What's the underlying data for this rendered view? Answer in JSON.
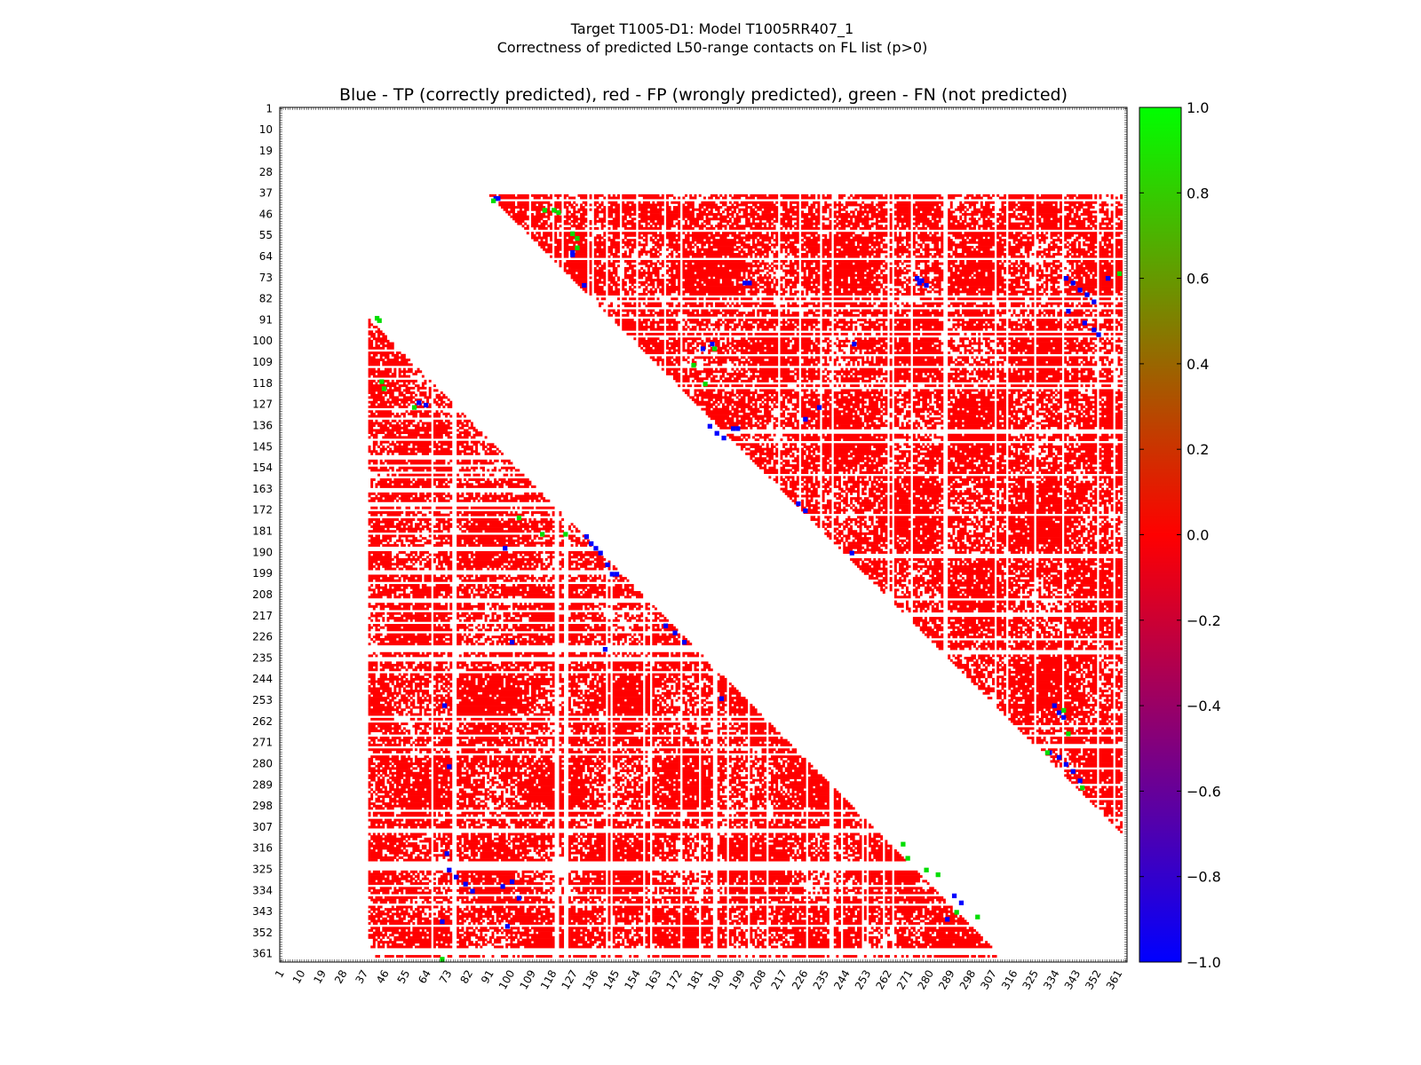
{
  "figure": {
    "title_line1": "Target T1005-D1: Model T1005RR407_1",
    "title_line2": "Correctness of predicted L50-range contacts on FL list (p>0)"
  },
  "chart_data": {
    "type": "heatmap",
    "title": "Blue - TP (correctly predicted), red - FP (wrongly predicted), green - FN (not predicted)",
    "xlabel": "",
    "ylabel": "",
    "n_residues": 364,
    "xlim": [
      1,
      364
    ],
    "ylim": [
      1,
      364
    ],
    "y_axis_inverted": true,
    "tick_labels": [
      1,
      10,
      19,
      28,
      37,
      46,
      55,
      64,
      73,
      82,
      91,
      100,
      109,
      118,
      127,
      136,
      145,
      154,
      163,
      172,
      181,
      190,
      199,
      208,
      217,
      226,
      235,
      244,
      253,
      262,
      271,
      280,
      289,
      298,
      307,
      316,
      325,
      334,
      343,
      352,
      361
    ],
    "colors": {
      "TP": "#0000ff",
      "FP": "#ff0000",
      "FN": "#00dd00"
    },
    "colorbar": {
      "range": [
        -1.0,
        1.0
      ],
      "tick_labels": [
        "1.0",
        "0.8",
        "0.6",
        "0.4",
        "0.2",
        "0.0",
        "−0.2",
        "−0.4",
        "−0.6",
        "−0.8",
        "−1.0"
      ],
      "gradient": [
        "#00ff00",
        "#ff0000",
        "#0000ff"
      ]
    },
    "regions": [
      {
        "name": "upper-triangle-region",
        "x_start": 91,
        "x_end": 362,
        "y_start": 38,
        "y_end": 309,
        "diagonal_offset": 53
      },
      {
        "name": "lower-triangle-region",
        "x_start": 39,
        "x_end": 310,
        "y_start": 91,
        "y_end": 362,
        "diagonal_offset": 52
      }
    ],
    "series": [
      {
        "name": "TP",
        "label": "correctly predicted",
        "color": "#0000ff",
        "points": [
          [
            93,
            39
          ],
          [
            94,
            39
          ],
          [
            126,
            62
          ],
          [
            126,
            63
          ],
          [
            131,
            76
          ],
          [
            200,
            75
          ],
          [
            202,
            75
          ],
          [
            274,
            73
          ],
          [
            275,
            75
          ],
          [
            276,
            74
          ],
          [
            278,
            76
          ],
          [
            338,
            73
          ],
          [
            341,
            75
          ],
          [
            344,
            78
          ],
          [
            347,
            80
          ],
          [
            350,
            83
          ],
          [
            356,
            73
          ],
          [
            339,
            87
          ],
          [
            346,
            92
          ],
          [
            350,
            95
          ],
          [
            352,
            97
          ],
          [
            186,
            101
          ],
          [
            182,
            103
          ],
          [
            185,
            136
          ],
          [
            188,
            139
          ],
          [
            191,
            141
          ],
          [
            195,
            137
          ],
          [
            197,
            137
          ],
          [
            232,
            128
          ],
          [
            226,
            133
          ],
          [
            246,
            190
          ],
          [
            223,
            169
          ],
          [
            226,
            172
          ],
          [
            247,
            101
          ],
          [
            333,
            255
          ],
          [
            335,
            258
          ],
          [
            337,
            260
          ],
          [
            331,
            275
          ],
          [
            335,
            277
          ],
          [
            338,
            280
          ],
          [
            341,
            283
          ],
          [
            344,
            287
          ],
          [
            60,
            126
          ],
          [
            63,
            127
          ],
          [
            132,
            183
          ],
          [
            134,
            186
          ],
          [
            136,
            188
          ],
          [
            138,
            190
          ],
          [
            141,
            195
          ],
          [
            143,
            199
          ],
          [
            145,
            199
          ],
          [
            97,
            188
          ],
          [
            166,
            221
          ],
          [
            170,
            224
          ],
          [
            174,
            228
          ],
          [
            100,
            228
          ],
          [
            140,
            231
          ],
          [
            190,
            252
          ],
          [
            71,
            255
          ],
          [
            73,
            281
          ],
          [
            72,
            318
          ],
          [
            73,
            325
          ],
          [
            76,
            328
          ],
          [
            80,
            331
          ],
          [
            83,
            334
          ],
          [
            96,
            332
          ],
          [
            100,
            330
          ],
          [
            103,
            337
          ],
          [
            98,
            349
          ],
          [
            70,
            347
          ],
          [
            290,
            336
          ],
          [
            293,
            339
          ],
          [
            287,
            346
          ]
        ]
      },
      {
        "name": "FN",
        "label": "not predicted",
        "color": "#00dd00",
        "points": [
          [
            92,
            40
          ],
          [
            114,
            44
          ],
          [
            118,
            44
          ],
          [
            120,
            45
          ],
          [
            126,
            54
          ],
          [
            128,
            56
          ],
          [
            128,
            60
          ],
          [
            187,
            103
          ],
          [
            178,
            110
          ],
          [
            183,
            118
          ],
          [
            42,
            90
          ],
          [
            43,
            91
          ],
          [
            44,
            117
          ],
          [
            45,
            120
          ],
          [
            58,
            128
          ],
          [
            103,
            175
          ],
          [
            113,
            182
          ],
          [
            123,
            182
          ],
          [
            268,
            314
          ],
          [
            270,
            320
          ],
          [
            283,
            327
          ],
          [
            300,
            345
          ],
          [
            291,
            343
          ],
          [
            278,
            325
          ],
          [
            337,
            257
          ],
          [
            339,
            267
          ],
          [
            345,
            290
          ],
          [
            330,
            275
          ],
          [
            361,
            71
          ],
          [
            70,
            363
          ]
        ]
      }
    ]
  }
}
